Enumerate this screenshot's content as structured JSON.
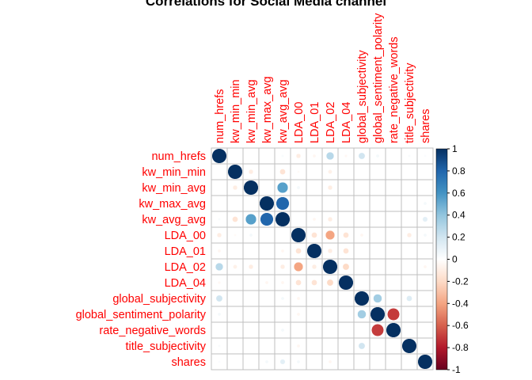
{
  "chart_data": {
    "type": "heatmap",
    "subtype": "correlation-circle-matrix",
    "title": "Correlations for Social Media channel",
    "variables": [
      "num_hrefs",
      "kw_min_min",
      "kw_min_avg",
      "kw_max_avg",
      "kw_avg_avg",
      "LDA_00",
      "LDA_01",
      "LDA_02",
      "LDA_04",
      "global_subjectivity",
      "global_sentiment_polarity",
      "rate_negative_words",
      "title_subjectivity",
      "shares"
    ],
    "matrix": [
      [
        1.0,
        0.0,
        0.0,
        0.0,
        0.03,
        -0.1,
        -0.05,
        0.28,
        -0.04,
        0.2,
        0.05,
        0.0,
        0.03,
        0.02
      ],
      [
        0.0,
        1.0,
        -0.1,
        0.0,
        -0.15,
        -0.03,
        0.0,
        -0.08,
        0.0,
        0.0,
        0.0,
        0.0,
        0.0,
        0.0
      ],
      [
        0.0,
        -0.1,
        1.0,
        0.0,
        0.55,
        0.05,
        0.0,
        -0.1,
        0.0,
        0.0,
        0.0,
        0.0,
        0.0,
        0.0
      ],
      [
        0.0,
        0.0,
        0.0,
        1.0,
        0.8,
        0.0,
        0.0,
        0.0,
        0.0,
        0.0,
        0.0,
        0.0,
        0.0,
        0.05
      ],
      [
        0.03,
        -0.15,
        0.55,
        0.8,
        1.0,
        0.0,
        -0.05,
        -0.1,
        0.0,
        0.0,
        0.0,
        0.0,
        0.0,
        0.12
      ],
      [
        -0.1,
        -0.03,
        0.05,
        0.0,
        0.0,
        1.0,
        -0.15,
        -0.4,
        -0.15,
        -0.05,
        0.0,
        0.0,
        -0.1,
        0.05
      ],
      [
        -0.05,
        0.0,
        0.0,
        0.0,
        -0.05,
        -0.15,
        1.0,
        -0.1,
        -0.15,
        0.0,
        0.0,
        0.0,
        0.0,
        0.0
      ],
      [
        0.28,
        -0.08,
        -0.1,
        0.0,
        -0.1,
        -0.4,
        -0.1,
        1.0,
        -0.2,
        0.0,
        0.0,
        0.0,
        0.0,
        -0.05
      ],
      [
        -0.04,
        0.0,
        0.0,
        -0.05,
        -0.05,
        -0.15,
        -0.15,
        -0.2,
        1.0,
        0.0,
        0.0,
        0.0,
        0.0,
        0.0
      ],
      [
        0.2,
        0.0,
        0.0,
        0.0,
        0.05,
        -0.05,
        0.0,
        0.0,
        0.0,
        1.0,
        0.35,
        0.0,
        0.15,
        0.0
      ],
      [
        0.05,
        0.0,
        0.0,
        0.0,
        0.0,
        -0.05,
        0.0,
        0.0,
        0.0,
        0.35,
        1.0,
        -0.7,
        0.0,
        0.0
      ],
      [
        0.0,
        0.0,
        0.0,
        0.0,
        0.05,
        0.0,
        0.0,
        0.0,
        0.0,
        0.0,
        -0.7,
        1.0,
        0.0,
        0.0
      ],
      [
        0.03,
        0.0,
        0.0,
        0.0,
        0.0,
        -0.05,
        0.0,
        0.0,
        0.0,
        0.2,
        0.0,
        0.0,
        1.0,
        0.0
      ],
      [
        0.02,
        0.0,
        0.0,
        0.05,
        0.12,
        0.05,
        0.0,
        -0.05,
        0.0,
        0.0,
        0.0,
        0.0,
        0.0,
        1.0
      ]
    ],
    "colorbar": {
      "range": [
        -1,
        1
      ],
      "ticks": [
        "1",
        "0.8",
        "0.6",
        "0.4",
        "0.2",
        "0",
        "-0.2",
        "-0.4",
        "-0.6",
        "-0.8",
        "-1"
      ],
      "colors": {
        "neg": "#67001f",
        "mid": "#ffffff",
        "pos": "#053061"
      }
    },
    "label_color": "#ff0000",
    "grid_color": "#bfbfbf"
  }
}
